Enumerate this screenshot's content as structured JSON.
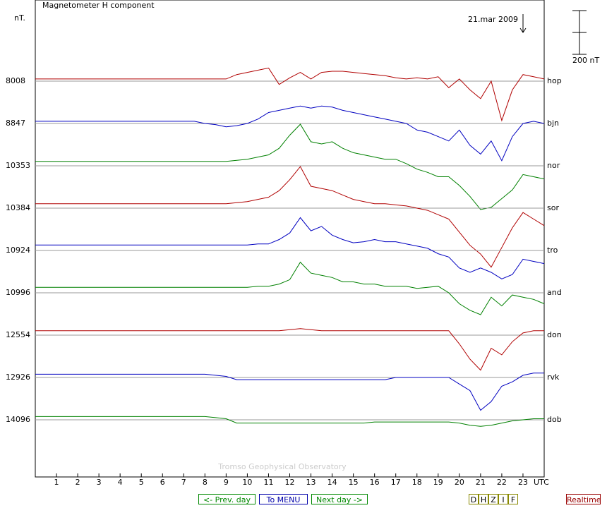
{
  "chart_data": {
    "type": "line",
    "title": "Magnetometer H component",
    "y_unit": "nT.",
    "date": "21.mar 2009",
    "scale": {
      "value": 200,
      "label": "200 nT"
    },
    "watermark": "Tromso Geophysical Observatory",
    "xlim": [
      0,
      24
    ],
    "xticks": [
      1,
      2,
      3,
      4,
      5,
      6,
      7,
      8,
      9,
      10,
      11,
      12,
      13,
      14,
      15,
      16,
      17,
      18,
      19,
      20,
      21,
      22,
      23
    ],
    "x_label": "UTC",
    "grid": true,
    "x": [
      0,
      0.5,
      1,
      1.5,
      2,
      2.5,
      3,
      3.5,
      4,
      4.5,
      5,
      5.5,
      6,
      6.5,
      7,
      7.5,
      8,
      8.5,
      9,
      9.5,
      10,
      10.5,
      11,
      11.5,
      12,
      12.5,
      13,
      13.5,
      14,
      14.5,
      15,
      15.5,
      16,
      16.5,
      17,
      17.5,
      18,
      18.5,
      19,
      19.5,
      20,
      20.5,
      21,
      21.5,
      22,
      22.5,
      23,
      23.5,
      24
    ],
    "series": [
      {
        "name": "hop",
        "baseline": 8008,
        "color": "#b00000",
        "values": [
          10,
          10,
          10,
          10,
          10,
          10,
          10,
          10,
          10,
          10,
          10,
          10,
          10,
          10,
          10,
          10,
          10,
          10,
          10,
          30,
          40,
          50,
          60,
          -15,
          15,
          40,
          10,
          40,
          45,
          45,
          40,
          35,
          30,
          25,
          15,
          10,
          15,
          10,
          20,
          -30,
          10,
          -40,
          -80,
          0,
          -180,
          -40,
          30,
          20,
          10
        ]
      },
      {
        "name": "bjn",
        "baseline": 8847,
        "color": "#0000c0",
        "values": [
          10,
          10,
          10,
          10,
          10,
          10,
          10,
          10,
          10,
          10,
          10,
          10,
          10,
          10,
          10,
          10,
          0,
          -5,
          -15,
          -10,
          0,
          20,
          50,
          60,
          70,
          80,
          70,
          80,
          75,
          60,
          50,
          40,
          30,
          20,
          10,
          0,
          -30,
          -40,
          -60,
          -80,
          -30,
          -100,
          -140,
          -80,
          -170,
          -60,
          0,
          10,
          0
        ]
      },
      {
        "name": "nor",
        "baseline": 10353,
        "color": "#008000",
        "values": [
          20,
          20,
          20,
          20,
          20,
          20,
          20,
          20,
          20,
          20,
          20,
          20,
          20,
          20,
          20,
          20,
          20,
          20,
          20,
          25,
          30,
          40,
          50,
          80,
          140,
          190,
          110,
          100,
          110,
          80,
          60,
          50,
          40,
          30,
          30,
          10,
          -15,
          -30,
          -50,
          -50,
          -90,
          -140,
          -200,
          -190,
          -150,
          -110,
          -40,
          -50,
          -60
        ]
      },
      {
        "name": "sor",
        "baseline": 10384,
        "color": "#b00000",
        "values": [
          20,
          20,
          20,
          20,
          20,
          20,
          20,
          20,
          20,
          20,
          20,
          20,
          20,
          20,
          20,
          20,
          20,
          20,
          20,
          25,
          30,
          40,
          50,
          80,
          130,
          190,
          100,
          90,
          80,
          60,
          40,
          30,
          20,
          20,
          15,
          10,
          0,
          -10,
          -30,
          -50,
          -110,
          -170,
          -210,
          -270,
          -180,
          -90,
          -20,
          -50,
          -80
        ]
      },
      {
        "name": "tro",
        "baseline": 10924,
        "color": "#0000c0",
        "values": [
          25,
          25,
          25,
          25,
          25,
          25,
          25,
          25,
          25,
          25,
          25,
          25,
          25,
          25,
          25,
          25,
          25,
          25,
          25,
          25,
          25,
          30,
          30,
          50,
          80,
          150,
          90,
          110,
          70,
          50,
          35,
          40,
          50,
          40,
          40,
          30,
          20,
          10,
          -15,
          -30,
          -80,
          -100,
          -80,
          -100,
          -130,
          -110,
          -40,
          -50,
          -60
        ]
      },
      {
        "name": "and",
        "baseline": 10996,
        "color": "#008000",
        "values": [
          25,
          25,
          25,
          25,
          25,
          25,
          25,
          25,
          25,
          25,
          25,
          25,
          25,
          25,
          25,
          25,
          25,
          25,
          25,
          25,
          25,
          30,
          30,
          40,
          60,
          140,
          90,
          80,
          70,
          50,
          50,
          40,
          40,
          30,
          30,
          30,
          20,
          25,
          30,
          0,
          -50,
          -80,
          -100,
          -20,
          -60,
          -10,
          -20,
          -30,
          -50
        ]
      },
      {
        "name": "don",
        "baseline": 12554,
        "color": "#b00000",
        "values": [
          20,
          20,
          20,
          20,
          20,
          20,
          20,
          20,
          20,
          20,
          20,
          20,
          20,
          20,
          20,
          20,
          20,
          20,
          20,
          20,
          20,
          20,
          20,
          20,
          25,
          30,
          25,
          20,
          20,
          20,
          20,
          20,
          20,
          20,
          20,
          20,
          20,
          20,
          20,
          20,
          -40,
          -110,
          -160,
          -60,
          -90,
          -30,
          10,
          20,
          20
        ]
      },
      {
        "name": "rvk",
        "baseline": 12926,
        "color": "#0000c0",
        "values": [
          15,
          15,
          15,
          15,
          15,
          15,
          15,
          15,
          15,
          15,
          15,
          15,
          15,
          15,
          15,
          15,
          15,
          10,
          5,
          -10,
          -10,
          -10,
          -10,
          -10,
          -10,
          -10,
          -10,
          -10,
          -10,
          -10,
          -10,
          -10,
          -10,
          -10,
          0,
          0,
          0,
          0,
          0,
          0,
          -30,
          -60,
          -150,
          -110,
          -40,
          -20,
          10,
          20,
          20
        ]
      },
      {
        "name": "dob",
        "baseline": 14096,
        "color": "#008000",
        "values": [
          15,
          15,
          15,
          15,
          15,
          15,
          15,
          15,
          15,
          15,
          15,
          15,
          15,
          15,
          15,
          15,
          15,
          10,
          5,
          -15,
          -15,
          -15,
          -15,
          -15,
          -15,
          -15,
          -15,
          -15,
          -15,
          -15,
          -15,
          -15,
          -10,
          -10,
          -10,
          -10,
          -10,
          -10,
          -10,
          -10,
          -15,
          -25,
          -30,
          -25,
          -15,
          -5,
          0,
          5,
          5
        ]
      }
    ]
  },
  "controls": {
    "prev": "<- Prev. day",
    "menu": "To MENU",
    "next": "Next day ->",
    "components": [
      "D",
      "H",
      "Z",
      "I",
      "F"
    ],
    "realtime": "Realtime"
  }
}
